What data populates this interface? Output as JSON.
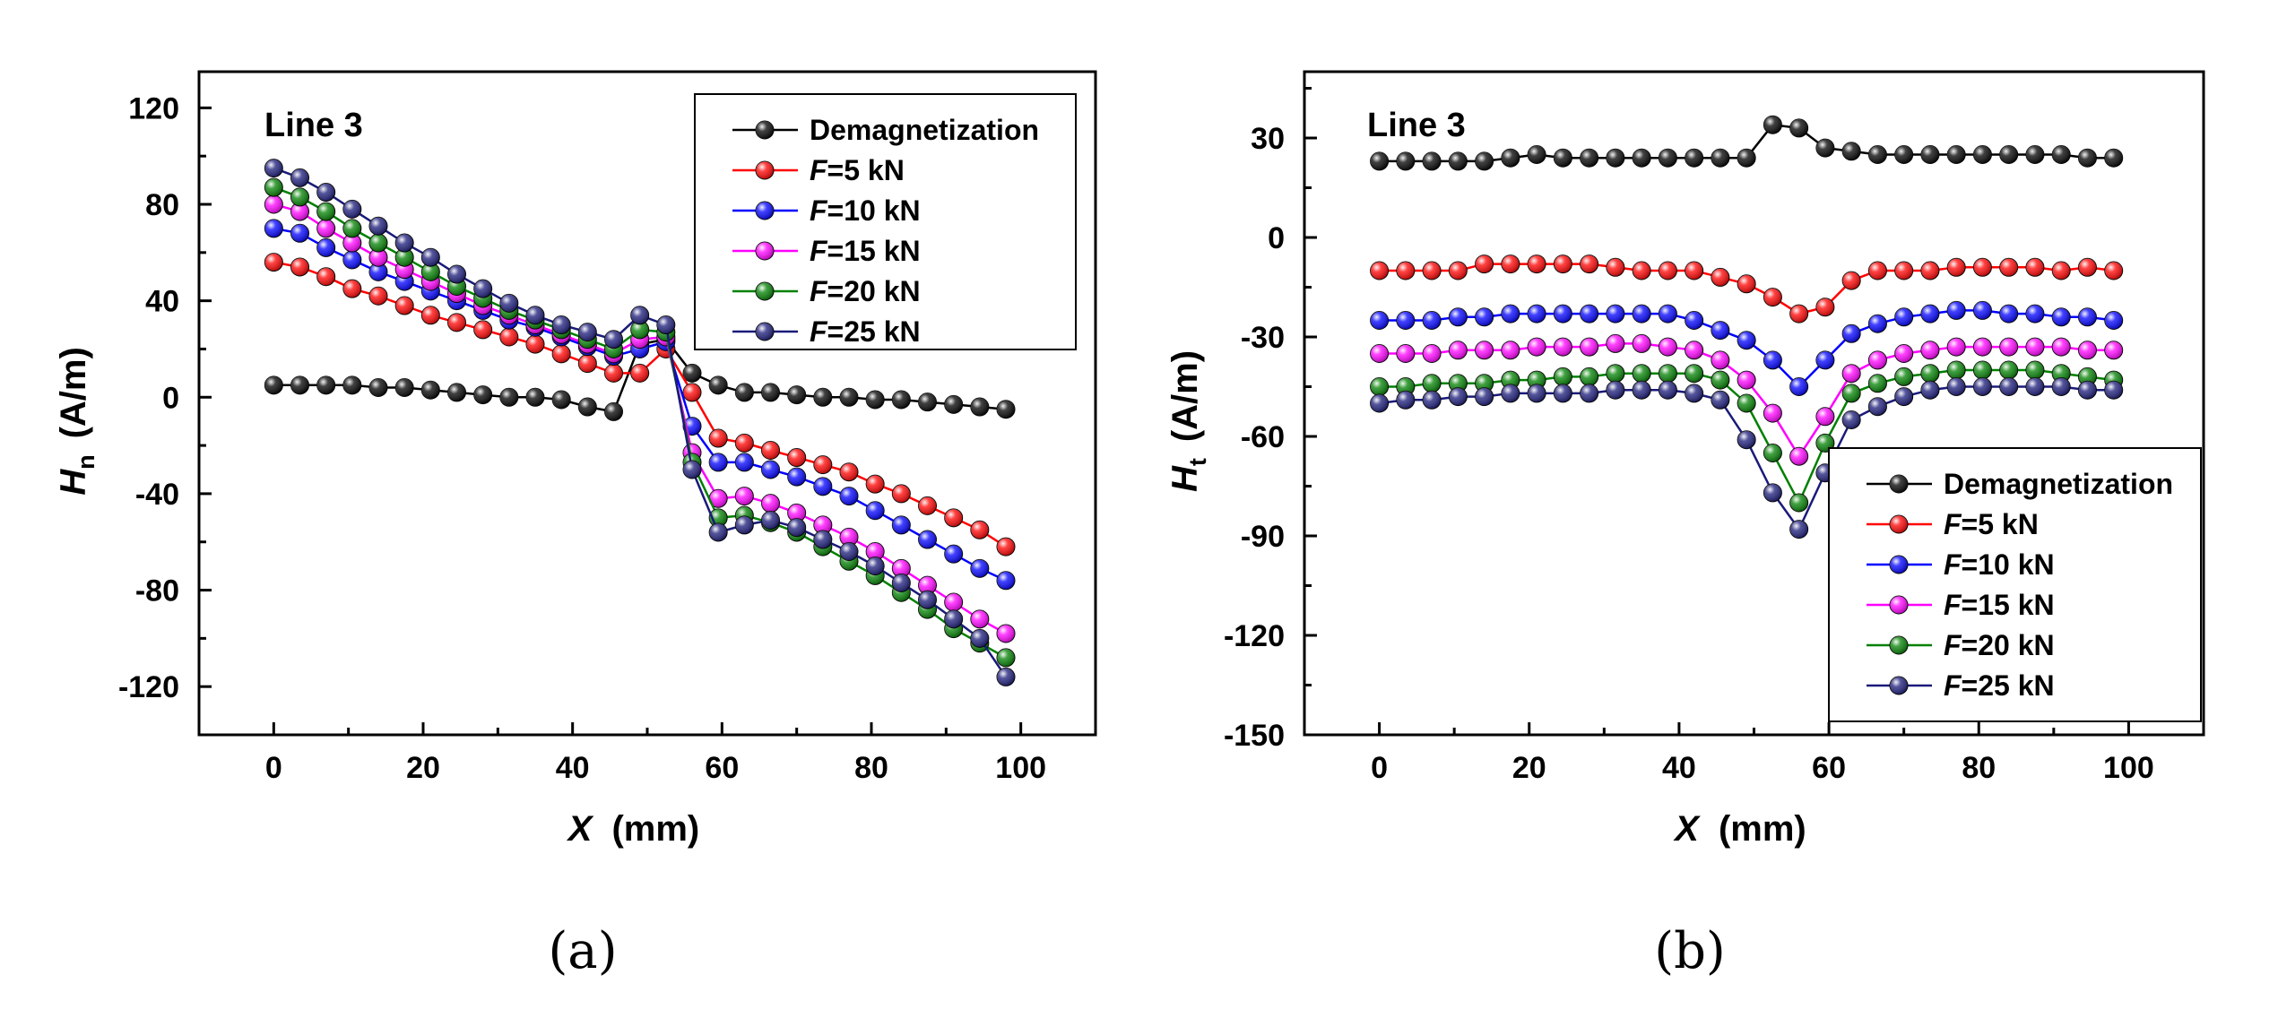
{
  "chart_data": [
    {
      "type": "line",
      "panel_label": "(a)",
      "annotation": "Line 3",
      "xlabel": "X",
      "xlabel_unit": "(mm)",
      "ylabel": "H",
      "ylabel_sub": "n",
      "ylabel_unit": "(A/m)",
      "xlim": [
        -10,
        110
      ],
      "ylim": [
        -140,
        135
      ],
      "xticks": [
        0,
        20,
        40,
        60,
        80,
        100
      ],
      "yticks": [
        -120,
        -80,
        -40,
        0,
        40,
        80,
        120
      ],
      "ytick_labels": [
        "-120",
        "-80",
        "-40",
        "0",
        "40",
        "80",
        "120"
      ],
      "legend_position": "top-right",
      "x": [
        0,
        3.5,
        7,
        10.5,
        14,
        17.5,
        21,
        24.5,
        28,
        31.5,
        35,
        38.5,
        42,
        45.5,
        49,
        52.5,
        56,
        59.5,
        63,
        66.5,
        70,
        73.5,
        77,
        80.5,
        84,
        87.5,
        91,
        94.5,
        98
      ],
      "series": [
        {
          "name": "Demagnetization",
          "color": "#000000",
          "values": [
            5,
            5,
            5,
            5,
            4,
            4,
            3,
            2,
            1,
            0,
            0,
            -1,
            -4,
            -6,
            22,
            24,
            10,
            5,
            2,
            2,
            1,
            0,
            0,
            -1,
            -1,
            -2,
            -3,
            -4,
            -5
          ]
        },
        {
          "name": "=5 kN",
          "name_prefix": "F",
          "color": "#ff0000",
          "values": [
            56,
            54,
            50,
            45,
            42,
            38,
            34,
            31,
            28,
            25,
            22,
            18,
            14,
            10,
            10,
            20,
            2,
            -17,
            -19,
            -22,
            -25,
            -28,
            -31,
            -36,
            -40,
            -45,
            -50,
            -55,
            -62
          ]
        },
        {
          "name": "=10 kN",
          "name_prefix": "F",
          "color": "#0000ff",
          "values": [
            70,
            68,
            62,
            57,
            52,
            48,
            44,
            40,
            36,
            32,
            29,
            25,
            21,
            17,
            20,
            23,
            -12,
            -27,
            -27,
            -30,
            -33,
            -37,
            -41,
            -47,
            -53,
            -59,
            -65,
            -71,
            -76
          ]
        },
        {
          "name": "=15 kN",
          "name_prefix": "F",
          "color": "#ff00ff",
          "values": [
            80,
            77,
            70,
            64,
            58,
            53,
            48,
            43,
            38,
            34,
            30,
            26,
            22,
            18,
            24,
            25,
            -23,
            -42,
            -41,
            -44,
            -48,
            -53,
            -58,
            -64,
            -71,
            -78,
            -85,
            -92,
            -98
          ]
        },
        {
          "name": "=20 kN",
          "name_prefix": "F",
          "color": "#008000",
          "values": [
            87,
            83,
            77,
            70,
            64,
            58,
            52,
            46,
            41,
            36,
            32,
            28,
            24,
            20,
            28,
            27,
            -27,
            -50,
            -49,
            -52,
            -56,
            -62,
            -68,
            -74,
            -81,
            -88,
            -96,
            -102,
            -108
          ]
        },
        {
          "name": "=25 kN",
          "name_prefix": "F",
          "color": "#1a1a7a",
          "values": [
            95,
            91,
            85,
            78,
            71,
            64,
            58,
            51,
            45,
            39,
            34,
            30,
            27,
            24,
            34,
            30,
            -30,
            -56,
            -53,
            -51,
            -54,
            -59,
            -64,
            -70,
            -77,
            -84,
            -92,
            -100,
            -116
          ]
        }
      ]
    },
    {
      "type": "line",
      "panel_label": "(b)",
      "annotation": "Line 3",
      "xlabel": "X",
      "xlabel_unit": "(mm)",
      "ylabel": "H",
      "ylabel_sub": "t",
      "ylabel_unit": "(A/m)",
      "xlim": [
        -10,
        110
      ],
      "ylim": [
        -150,
        50
      ],
      "xticks": [
        0,
        20,
        40,
        60,
        80,
        100
      ],
      "yticks": [
        -150,
        -120,
        -90,
        -60,
        -30,
        0,
        30
      ],
      "ytick_labels": [
        "-150",
        "-120",
        "-90",
        "-60",
        "-30",
        "0",
        "30"
      ],
      "legend_position": "bottom-right",
      "x": [
        0,
        3.5,
        7,
        10.5,
        14,
        17.5,
        21,
        24.5,
        28,
        31.5,
        35,
        38.5,
        42,
        45.5,
        49,
        52.5,
        56,
        59.5,
        63,
        66.5,
        70,
        73.5,
        77,
        80.5,
        84,
        87.5,
        91,
        94.5,
        98
      ],
      "series": [
        {
          "name": "Demagnetization",
          "color": "#000000",
          "values": [
            23,
            23,
            23,
            23,
            23,
            24,
            25,
            24,
            24,
            24,
            24,
            24,
            24,
            24,
            24,
            34,
            33,
            27,
            26,
            25,
            25,
            25,
            25,
            25,
            25,
            25,
            25,
            24,
            24
          ]
        },
        {
          "name": "=5 kN",
          "name_prefix": "F",
          "color": "#ff0000",
          "values": [
            -10,
            -10,
            -10,
            -10,
            -8,
            -8,
            -8,
            -8,
            -8,
            -9,
            -10,
            -10,
            -10,
            -12,
            -14,
            -18,
            -23,
            -21,
            -13,
            -10,
            -10,
            -10,
            -9,
            -9,
            -9,
            -9,
            -10,
            -9,
            -10
          ]
        },
        {
          "name": "=10 kN",
          "name_prefix": "F",
          "color": "#0000ff",
          "values": [
            -25,
            -25,
            -25,
            -24,
            -24,
            -23,
            -23,
            -23,
            -23,
            -23,
            -23,
            -23,
            -25,
            -28,
            -31,
            -37,
            -45,
            -37,
            -29,
            -26,
            -24,
            -23,
            -22,
            -22,
            -23,
            -23,
            -24,
            -24,
            -25
          ]
        },
        {
          "name": "=15 kN",
          "name_prefix": "F",
          "color": "#ff00ff",
          "values": [
            -35,
            -35,
            -35,
            -34,
            -34,
            -34,
            -33,
            -33,
            -33,
            -32,
            -32,
            -33,
            -34,
            -37,
            -43,
            -53,
            -66,
            -54,
            -41,
            -37,
            -35,
            -34,
            -33,
            -33,
            -33,
            -33,
            -33,
            -34,
            -34
          ]
        },
        {
          "name": "=20 kN",
          "name_prefix": "F",
          "color": "#008000",
          "values": [
            -45,
            -45,
            -44,
            -44,
            -44,
            -43,
            -43,
            -42,
            -42,
            -41,
            -41,
            -41,
            -41,
            -43,
            -50,
            -65,
            -80,
            -62,
            -47,
            -44,
            -42,
            -41,
            -40,
            -40,
            -40,
            -40,
            -41,
            -42,
            -43
          ]
        },
        {
          "name": "=25 kN",
          "name_prefix": "F",
          "color": "#1a1a7a",
          "values": [
            -50,
            -49,
            -49,
            -48,
            -48,
            -47,
            -47,
            -47,
            -47,
            -46,
            -46,
            -46,
            -47,
            -49,
            -61,
            -77,
            -88,
            -71,
            -55,
            -51,
            -48,
            -46,
            -45,
            -45,
            -45,
            -45,
            -45,
            -46,
            -46
          ]
        }
      ]
    }
  ]
}
